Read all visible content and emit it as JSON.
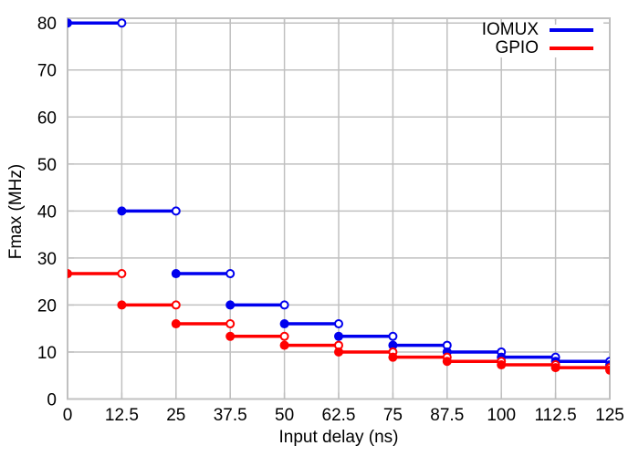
{
  "chart_data": {
    "type": "line",
    "style": "horizontal step segments; filled circle at step start, open circle at step end; first markers clipped at left border, last markers clipped at right border",
    "title": "",
    "xlabel": "Input delay (ns)",
    "ylabel": "Fmax (MHz)",
    "xlim": [
      0,
      125
    ],
    "ylim": [
      0,
      80
    ],
    "grid": true,
    "xtick_labels": [
      "0",
      "12.5",
      "25",
      "37.5",
      "50",
      "62.5",
      "75",
      "87.5",
      "100",
      "112.5",
      "125"
    ],
    "xtick_values": [
      0,
      12.5,
      25,
      37.5,
      50,
      62.5,
      75,
      87.5,
      100,
      112.5,
      125
    ],
    "ytick_labels": [
      "0",
      "10",
      "20",
      "30",
      "40",
      "50",
      "60",
      "70",
      "80"
    ],
    "ytick_values": [
      0,
      10,
      20,
      30,
      40,
      50,
      60,
      70,
      80
    ],
    "legend": {
      "position": "top-right-inside",
      "opaque": true
    },
    "colors": {
      "grid": "#c0c0c0",
      "border": "#c0c0c0",
      "text": "#000000",
      "background": "#ffffff"
    },
    "series": [
      {
        "name": "IOMUX",
        "color": "#0000ee",
        "steps": [
          {
            "x_start": 0,
            "x_end": 12.5,
            "fmax": 80
          },
          {
            "x_start": 12.5,
            "x_end": 25,
            "fmax": 40
          },
          {
            "x_start": 25,
            "x_end": 37.5,
            "fmax": 26.67
          },
          {
            "x_start": 37.5,
            "x_end": 50,
            "fmax": 20
          },
          {
            "x_start": 50,
            "x_end": 62.5,
            "fmax": 16
          },
          {
            "x_start": 62.5,
            "x_end": 75,
            "fmax": 13.33
          },
          {
            "x_start": 75,
            "x_end": 87.5,
            "fmax": 11.43
          },
          {
            "x_start": 87.5,
            "x_end": 100,
            "fmax": 10
          },
          {
            "x_start": 100,
            "x_end": 112.5,
            "fmax": 8.89
          },
          {
            "x_start": 112.5,
            "x_end": 125,
            "fmax": 8
          }
        ],
        "clipped_next_fmax_at_right_edge": 7.27
      },
      {
        "name": "GPIO",
        "color": "#ff0000",
        "steps": [
          {
            "x_start": 0,
            "x_end": 12.5,
            "fmax": 26.67
          },
          {
            "x_start": 12.5,
            "x_end": 25,
            "fmax": 20
          },
          {
            "x_start": 25,
            "x_end": 37.5,
            "fmax": 16
          },
          {
            "x_start": 37.5,
            "x_end": 50,
            "fmax": 13.33
          },
          {
            "x_start": 50,
            "x_end": 62.5,
            "fmax": 11.43
          },
          {
            "x_start": 62.5,
            "x_end": 75,
            "fmax": 10
          },
          {
            "x_start": 75,
            "x_end": 87.5,
            "fmax": 8.89
          },
          {
            "x_start": 87.5,
            "x_end": 100,
            "fmax": 8
          },
          {
            "x_start": 100,
            "x_end": 112.5,
            "fmax": 7.27
          },
          {
            "x_start": 112.5,
            "x_end": 125,
            "fmax": 6.67
          }
        ],
        "clipped_next_fmax_at_right_edge": 6.15
      }
    ]
  }
}
